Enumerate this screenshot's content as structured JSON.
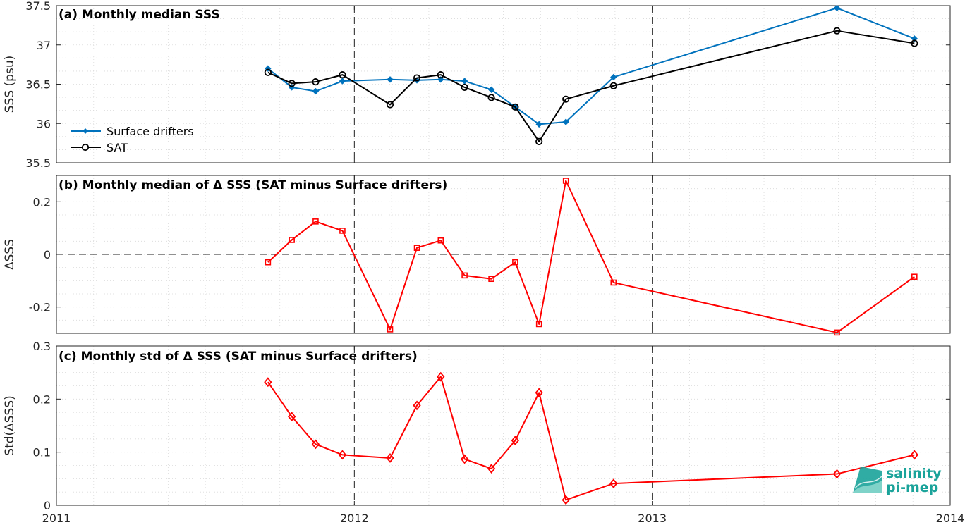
{
  "colors": {
    "drifters": "#0072BD",
    "sat": "#000000",
    "delta": "#FF0000",
    "logo": "#1aa39a"
  },
  "logo": {
    "line1": "salinity",
    "line2": "pi-mep"
  },
  "x_ticks": [
    "2011",
    "2012",
    "2013",
    "2014"
  ],
  "chart_data": [
    {
      "type": "line",
      "title": "(a) Monthly median SSS",
      "ylabel": "SSS (psu)",
      "xlim": [
        2011.0,
        2014.0
      ],
      "ylim": [
        35.5,
        37.5
      ],
      "yticks": [
        35.5,
        36,
        36.5,
        37,
        37.5
      ],
      "ytick_labels": [
        "35.5",
        "36",
        "36.5",
        "37",
        "37.5"
      ],
      "grid": true,
      "legend": "bottom-left",
      "x": [
        2011.71,
        2011.79,
        2011.87,
        2011.96,
        2012.12,
        2012.21,
        2012.29,
        2012.37,
        2012.46,
        2012.54,
        2012.62,
        2012.71,
        2012.87,
        2013.62,
        2013.88
      ],
      "series": [
        {
          "name": "Surface drifters",
          "color": "#0072BD",
          "marker": "diamond-filled",
          "values": [
            36.7,
            36.46,
            36.41,
            36.54,
            36.56,
            36.55,
            36.56,
            36.54,
            36.43,
            36.21,
            35.99,
            36.02,
            36.59,
            37.47,
            37.08
          ]
        },
        {
          "name": "SAT",
          "color": "#000000",
          "marker": "circle-open",
          "values": [
            36.65,
            36.51,
            36.53,
            36.62,
            36.24,
            36.58,
            36.62,
            36.46,
            36.33,
            36.21,
            35.77,
            36.31,
            36.48,
            37.18,
            37.02
          ]
        }
      ]
    },
    {
      "type": "line",
      "title": "(b) Monthly median of Δ SSS (SAT minus Surface drifters)",
      "ylabel": "ΔSSS",
      "xlim": [
        2011.0,
        2014.0
      ],
      "ylim": [
        -0.3,
        0.3
      ],
      "yticks": [
        -0.2,
        0,
        0.2
      ],
      "ytick_labels": [
        "-0.2",
        "0",
        "0.2"
      ],
      "zero_line": true,
      "grid": true,
      "x": [
        2011.71,
        2011.79,
        2011.87,
        2011.96,
        2012.12,
        2012.21,
        2012.29,
        2012.37,
        2012.46,
        2012.54,
        2012.62,
        2012.71,
        2012.87,
        2013.62,
        2013.88
      ],
      "series": [
        {
          "color": "#FF0000",
          "marker": "square-open",
          "values": [
            -0.03,
            0.055,
            0.125,
            0.09,
            -0.285,
            0.025,
            0.053,
            -0.08,
            -0.093,
            -0.03,
            -0.265,
            0.28,
            -0.107,
            -0.297,
            -0.085
          ]
        }
      ]
    },
    {
      "type": "line",
      "title": "(c) Monthly std of Δ SSS (SAT minus Surface drifters)",
      "ylabel": "Std(ΔSSS)",
      "xlim": [
        2011.0,
        2014.0
      ],
      "ylim": [
        0,
        0.3
      ],
      "yticks": [
        0,
        0.1,
        0.2,
        0.3
      ],
      "ytick_labels": [
        "0",
        "0.1",
        "0.2",
        "0.3"
      ],
      "grid": true,
      "x": [
        2011.71,
        2011.79,
        2011.87,
        2011.96,
        2012.12,
        2012.21,
        2012.29,
        2012.37,
        2012.46,
        2012.54,
        2012.62,
        2012.71,
        2012.87,
        2013.62,
        2013.88
      ],
      "series": [
        {
          "color": "#FF0000",
          "marker": "diamond-open",
          "values": [
            0.232,
            0.167,
            0.115,
            0.095,
            0.089,
            0.188,
            0.242,
            0.087,
            0.069,
            0.122,
            0.212,
            0.01,
            0.041,
            0.059,
            0.095
          ]
        }
      ]
    }
  ]
}
